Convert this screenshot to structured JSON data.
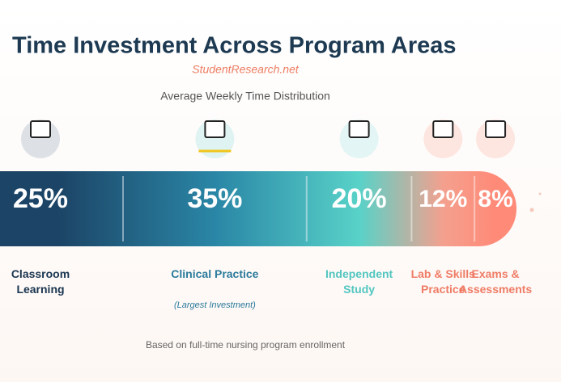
{
  "chart_data": {
    "type": "segmented_bar",
    "title": "Time Investment Across Program Areas",
    "source": "StudentResearch.net",
    "subtitle": "Average Weekly Time Distribution",
    "categories": [
      "Classroom Learning",
      "Clinical Practice",
      "Independent Study",
      "Lab & Skills Practice",
      "Exams & Assessments"
    ],
    "values": [
      25,
      35,
      20,
      12,
      8
    ],
    "value_labels": [
      "25%",
      "35%",
      "20%",
      "12%",
      "8%"
    ],
    "colors": [
      "#1c4466",
      "#2a86a6",
      "#58d2c8",
      "#f4a08e",
      "#ff8a78"
    ],
    "label_colors": [
      "#1a3550",
      "#2a7a9c",
      "#52c6c0",
      "#ef7c66",
      "#ef7c66"
    ],
    "annotation": "(Largest Investment)",
    "footnote": "Based on full-time nursing program enrollment"
  }
}
